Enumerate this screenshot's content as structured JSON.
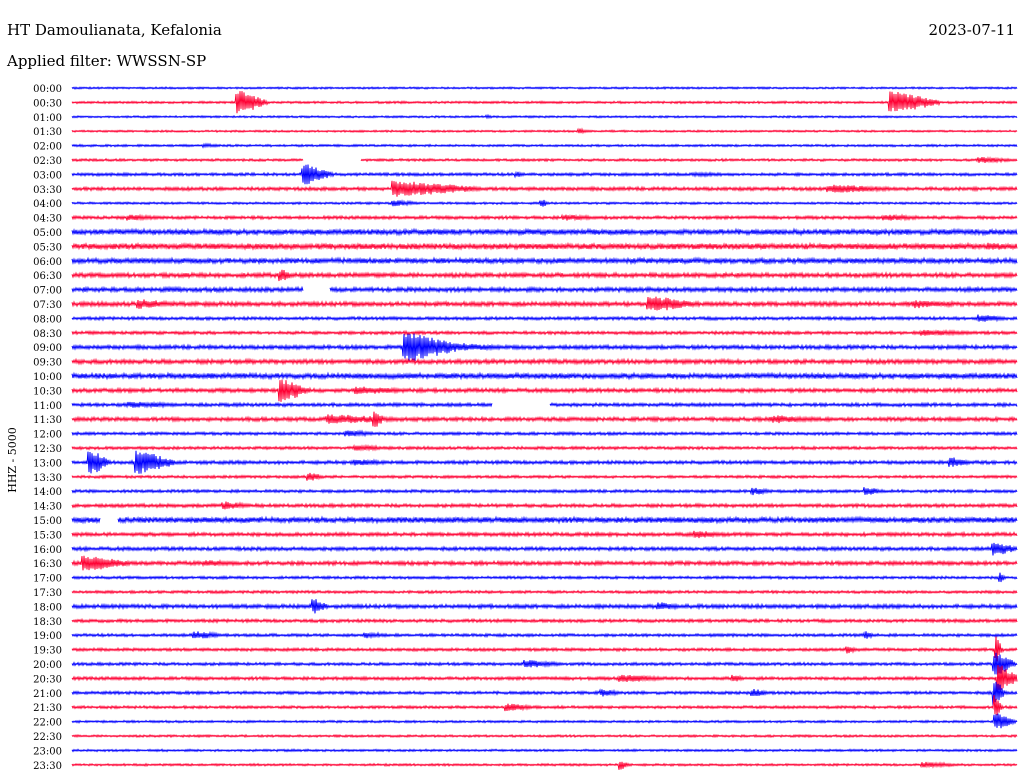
{
  "header": {
    "station": "HT Damoulianata, Kefalonia",
    "date": "2023-07-11",
    "filter": "Applied filter: WWSSN-SP"
  },
  "chart_data": {
    "type": "helicorder",
    "ylabel": "HHZ - 5000",
    "colors": [
      "#0000ff",
      "#ff0033"
    ],
    "rows": [
      {
        "time": "00:00",
        "color": "#0000ff",
        "noise": 0.8,
        "events": []
      },
      {
        "time": "00:30",
        "color": "#ff0033",
        "noise": 0.9,
        "events": [
          {
            "x": 0.175,
            "amp": 12,
            "len": 0.03
          },
          {
            "x": 0.866,
            "amp": 11,
            "len": 0.05
          }
        ]
      },
      {
        "time": "01:00",
        "color": "#0000ff",
        "noise": 0.8,
        "events": [
          {
            "x": 0.44,
            "amp": 2,
            "len": 0.005
          }
        ]
      },
      {
        "time": "01:30",
        "color": "#ff0033",
        "noise": 0.8,
        "events": [
          {
            "x": 0.537,
            "amp": 3,
            "len": 0.008
          }
        ]
      },
      {
        "time": "02:00",
        "color": "#0000ff",
        "noise": 0.9,
        "events": [
          {
            "x": 0.14,
            "amp": 2,
            "len": 0.02
          }
        ]
      },
      {
        "time": "02:30",
        "color": "#ff0033",
        "noise": 1.0,
        "events": [
          {
            "x": 0.96,
            "amp": 3,
            "len": 0.04
          }
        ],
        "gaps": [
          [
            0.245,
            0.305
          ]
        ]
      },
      {
        "time": "03:00",
        "color": "#0000ff",
        "noise": 1.2,
        "events": [
          {
            "x": 0.245,
            "amp": 10,
            "len": 0.03
          },
          {
            "x": 0.47,
            "amp": 3,
            "len": 0.01
          },
          {
            "x": 0.66,
            "amp": 2,
            "len": 0.05
          }
        ]
      },
      {
        "time": "03:30",
        "color": "#ff0033",
        "noise": 1.4,
        "events": [
          {
            "x": 0.34,
            "amp": 8,
            "len": 0.09
          },
          {
            "x": 0.8,
            "amp": 4,
            "len": 0.08
          }
        ]
      },
      {
        "time": "04:00",
        "color": "#0000ff",
        "noise": 0.9,
        "events": [
          {
            "x": 0.34,
            "amp": 3,
            "len": 0.03
          },
          {
            "x": 0.497,
            "amp": 5,
            "len": 0.006
          }
        ]
      },
      {
        "time": "04:30",
        "color": "#ff0033",
        "noise": 1.3,
        "events": [
          {
            "x": 0.06,
            "amp": 3,
            "len": 0.04
          },
          {
            "x": 0.52,
            "amp": 3,
            "len": 0.04
          },
          {
            "x": 0.86,
            "amp": 3,
            "len": 0.05
          }
        ]
      },
      {
        "time": "05:00",
        "color": "#0000ff",
        "noise": 2.2,
        "events": []
      },
      {
        "time": "05:30",
        "color": "#ff0033",
        "noise": 2.4,
        "events": [
          {
            "x": 0.97,
            "amp": 4,
            "len": 0.03
          }
        ]
      },
      {
        "time": "06:00",
        "color": "#0000ff",
        "noise": 2.1,
        "events": []
      },
      {
        "time": "06:30",
        "color": "#ff0033",
        "noise": 1.8,
        "events": [
          {
            "x": 0.22,
            "amp": 6,
            "len": 0.015
          }
        ]
      },
      {
        "time": "07:00",
        "color": "#0000ff",
        "noise": 1.8,
        "events": [],
        "gaps": [
          [
            0.245,
            0.272
          ]
        ]
      },
      {
        "time": "07:30",
        "color": "#ff0033",
        "noise": 1.8,
        "events": [
          {
            "x": 0.07,
            "amp": 5,
            "len": 0.04
          },
          {
            "x": 0.61,
            "amp": 8,
            "len": 0.05
          },
          {
            "x": 0.89,
            "amp": 4,
            "len": 0.05
          }
        ]
      },
      {
        "time": "08:00",
        "color": "#0000ff",
        "noise": 1.3,
        "events": [
          {
            "x": 0.96,
            "amp": 4,
            "len": 0.03
          }
        ]
      },
      {
        "time": "08:30",
        "color": "#ff0033",
        "noise": 1.3,
        "events": [
          {
            "x": 0.9,
            "amp": 3,
            "len": 0.06
          }
        ]
      },
      {
        "time": "09:00",
        "color": "#0000ff",
        "noise": 1.6,
        "events": [
          {
            "x": 0.352,
            "amp": 14,
            "len": 0.06
          },
          {
            "x": 0.41,
            "amp": 4,
            "len": 0.05
          }
        ]
      },
      {
        "time": "09:30",
        "color": "#ff0033",
        "noise": 1.8,
        "events": []
      },
      {
        "time": "10:00",
        "color": "#0000ff",
        "noise": 2.2,
        "events": []
      },
      {
        "time": "10:30",
        "color": "#ff0033",
        "noise": 1.6,
        "events": [
          {
            "x": 0.22,
            "amp": 12,
            "len": 0.03
          },
          {
            "x": 0.3,
            "amp": 4,
            "len": 0.06
          }
        ]
      },
      {
        "time": "11:00",
        "color": "#0000ff",
        "noise": 1.4,
        "events": [
          {
            "x": 0.06,
            "amp": 3,
            "len": 0.07
          }
        ],
        "gaps": [
          [
            0.445,
            0.505
          ]
        ]
      },
      {
        "time": "11:30",
        "color": "#ff0033",
        "noise": 1.6,
        "events": [
          {
            "x": 0.27,
            "amp": 5,
            "len": 0.08
          },
          {
            "x": 0.32,
            "amp": 9,
            "len": 0.01
          },
          {
            "x": 0.74,
            "amp": 4,
            "len": 0.05
          }
        ]
      },
      {
        "time": "12:00",
        "color": "#0000ff",
        "noise": 1.2,
        "events": [
          {
            "x": 0.29,
            "amp": 3,
            "len": 0.04
          }
        ]
      },
      {
        "time": "12:30",
        "color": "#ff0033",
        "noise": 1.2,
        "events": [
          {
            "x": 0.3,
            "amp": 3,
            "len": 0.04
          }
        ]
      },
      {
        "time": "13:00",
        "color": "#0000ff",
        "noise": 1.4,
        "events": [
          {
            "x": 0.018,
            "amp": 13,
            "len": 0.02
          },
          {
            "x": 0.068,
            "amp": 12,
            "len": 0.04
          },
          {
            "x": 0.3,
            "amp": 3,
            "len": 0.04
          },
          {
            "x": 0.93,
            "amp": 5,
            "len": 0.02
          }
        ]
      },
      {
        "time": "13:30",
        "color": "#ff0033",
        "noise": 1.1,
        "events": [
          {
            "x": 0.25,
            "amp": 5,
            "len": 0.015
          }
        ]
      },
      {
        "time": "14:00",
        "color": "#0000ff",
        "noise": 1.2,
        "events": [
          {
            "x": 0.72,
            "amp": 4,
            "len": 0.02
          },
          {
            "x": 0.84,
            "amp": 4,
            "len": 0.02
          }
        ]
      },
      {
        "time": "14:30",
        "color": "#ff0033",
        "noise": 1.4,
        "events": [
          {
            "x": 0.16,
            "amp": 4,
            "len": 0.03
          }
        ]
      },
      {
        "time": "15:00",
        "color": "#0000ff",
        "noise": 2.3,
        "events": [],
        "gaps": [
          [
            0.03,
            0.048
          ]
        ]
      },
      {
        "time": "15:30",
        "color": "#ff0033",
        "noise": 1.5,
        "events": [
          {
            "x": 0.66,
            "amp": 4,
            "len": 0.03
          }
        ]
      },
      {
        "time": "16:00",
        "color": "#0000ff",
        "noise": 1.5,
        "events": [
          {
            "x": 0.975,
            "amp": 7,
            "len": 0.025
          }
        ]
      },
      {
        "time": "16:30",
        "color": "#ff0033",
        "noise": 1.6,
        "events": [
          {
            "x": 0.012,
            "amp": 8,
            "len": 0.05
          },
          {
            "x": 0.14,
            "amp": 3,
            "len": 0.04
          }
        ]
      },
      {
        "time": "17:00",
        "color": "#0000ff",
        "noise": 1.1,
        "events": [
          {
            "x": 0.982,
            "amp": 5,
            "len": 0.005
          }
        ]
      },
      {
        "time": "17:30",
        "color": "#ff0033",
        "noise": 1.1,
        "events": []
      },
      {
        "time": "18:00",
        "color": "#0000ff",
        "noise": 1.6,
        "events": [
          {
            "x": 0.255,
            "amp": 8,
            "len": 0.015
          },
          {
            "x": 0.62,
            "amp": 4,
            "len": 0.03
          }
        ]
      },
      {
        "time": "18:30",
        "color": "#ff0033",
        "noise": 1.3,
        "events": []
      },
      {
        "time": "19:00",
        "color": "#0000ff",
        "noise": 1.2,
        "events": [
          {
            "x": 0.13,
            "amp": 4,
            "len": 0.03
          },
          {
            "x": 0.31,
            "amp": 3,
            "len": 0.03
          },
          {
            "x": 0.84,
            "amp": 4,
            "len": 0.01
          }
        ]
      },
      {
        "time": "19:30",
        "color": "#ff0033",
        "noise": 1.2,
        "events": [
          {
            "x": 0.82,
            "amp": 4,
            "len": 0.01
          },
          {
            "x": 0.978,
            "amp": 14,
            "len": 0.006
          }
        ]
      },
      {
        "time": "20:00",
        "color": "#0000ff",
        "noise": 1.2,
        "events": [
          {
            "x": 0.48,
            "amp": 4,
            "len": 0.04
          },
          {
            "x": 0.976,
            "amp": 14,
            "len": 0.02
          }
        ]
      },
      {
        "time": "20:30",
        "color": "#ff0033",
        "noise": 1.3,
        "events": [
          {
            "x": 0.58,
            "amp": 4,
            "len": 0.05
          },
          {
            "x": 0.7,
            "amp": 4,
            "len": 0.01
          },
          {
            "x": 0.98,
            "amp": 14,
            "len": 0.02
          }
        ]
      },
      {
        "time": "21:00",
        "color": "#0000ff",
        "noise": 1.2,
        "events": [
          {
            "x": 0.56,
            "amp": 4,
            "len": 0.02
          },
          {
            "x": 0.72,
            "amp": 4,
            "len": 0.02
          },
          {
            "x": 0.976,
            "amp": 14,
            "len": 0.01
          }
        ]
      },
      {
        "time": "21:30",
        "color": "#ff0033",
        "noise": 1.1,
        "events": [
          {
            "x": 0.46,
            "amp": 4,
            "len": 0.03
          },
          {
            "x": 0.977,
            "amp": 12,
            "len": 0.006
          }
        ]
      },
      {
        "time": "22:00",
        "color": "#0000ff",
        "noise": 0.9,
        "events": [
          {
            "x": 0.977,
            "amp": 8,
            "len": 0.02
          }
        ]
      },
      {
        "time": "22:30",
        "color": "#ff0033",
        "noise": 0.9,
        "events": []
      },
      {
        "time": "23:00",
        "color": "#0000ff",
        "noise": 0.9,
        "events": []
      },
      {
        "time": "23:30",
        "color": "#ff0033",
        "noise": 0.9,
        "events": [
          {
            "x": 0.58,
            "amp": 5,
            "len": 0.01
          },
          {
            "x": 0.9,
            "amp": 3,
            "len": 0.04
          }
        ]
      }
    ]
  }
}
